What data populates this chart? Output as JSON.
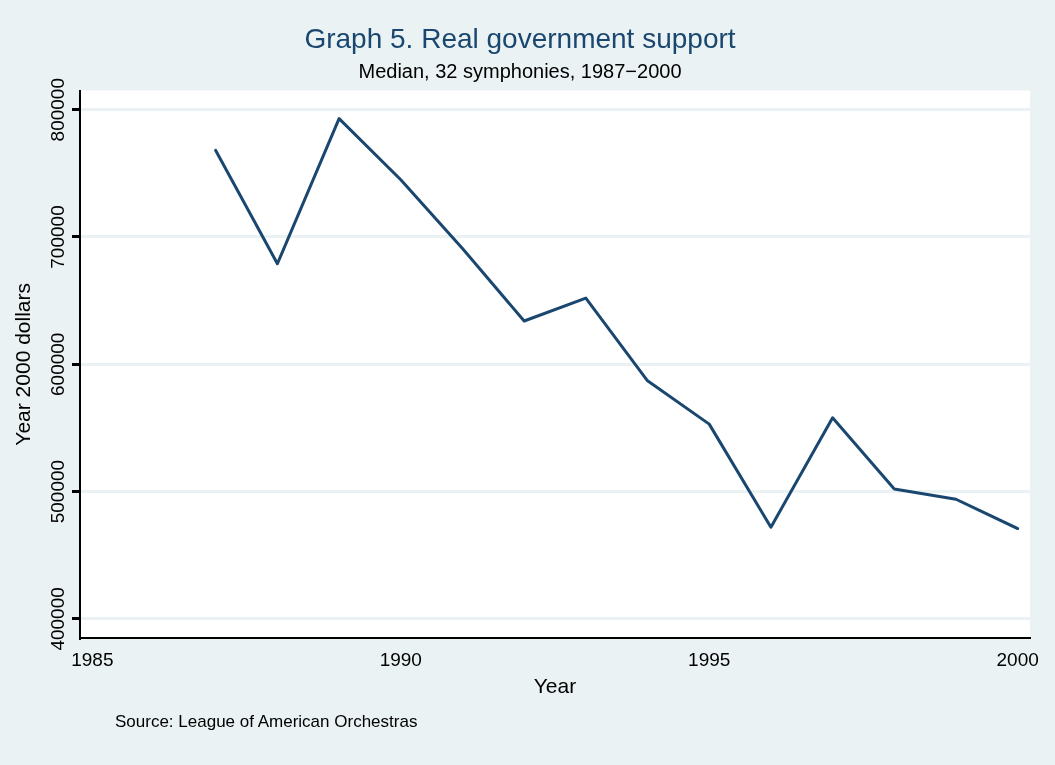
{
  "chart_data": {
    "type": "line",
    "title": "Graph 5. Real government support",
    "subtitle": "Median, 32 symphonies, 1987−2000",
    "xlabel": "Year",
    "ylabel": "Year 2000 dollars",
    "x": [
      1987,
      1988,
      1989,
      1990,
      1991,
      1992,
      1993,
      1994,
      1995,
      1996,
      1997,
      1998,
      1999,
      2000
    ],
    "series": [
      {
        "color": "#1a476f",
        "values": [
          768000,
          679000,
          793000,
          745000,
          691000,
          634000,
          652000,
          587000,
          553000,
          472000,
          558000,
          502000,
          494000,
          471000
        ]
      }
    ],
    "xlim": [
      1984.8,
      2000.2
    ],
    "xticks": [
      1985,
      1990,
      1995,
      2000
    ],
    "ylim": [
      385000,
      815000
    ],
    "yticks": [
      400000,
      500000,
      600000,
      700000,
      800000
    ],
    "grid": "y",
    "legend": false,
    "marker": "none",
    "line_style": "solid",
    "annotations": [
      "Source: League of American Orchestras"
    ]
  }
}
